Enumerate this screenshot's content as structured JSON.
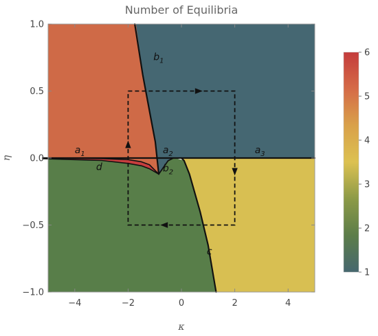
{
  "chart_data": {
    "type": "heatmap",
    "title": "Number of Equilibria",
    "xlabel": "κ",
    "ylabel": "η",
    "xlim": [
      -5,
      5
    ],
    "ylim": [
      -1,
      1
    ],
    "x_ticks": [
      -4,
      -2,
      0,
      2,
      4
    ],
    "x_tick_labels": [
      "−4",
      "−2",
      "0",
      "2",
      "4"
    ],
    "y_ticks": [
      1.0,
      0.5,
      0.0,
      -0.5,
      -1.0
    ],
    "y_tick_labels": [
      "1.0",
      "0.5",
      "0.0",
      "−0.5",
      "−1.0"
    ],
    "colorbar": {
      "min": 1,
      "max": 6,
      "ticks": [
        1,
        2,
        3,
        4,
        5,
        6
      ],
      "tick_labels": [
        "1",
        "2",
        "3",
        "4",
        "5",
        "6"
      ],
      "stops": [
        "#46676f",
        "#5c7d49",
        "#8c9a47",
        "#dcc151",
        "#d9a14a",
        "#d56b47",
        "#c43c3c"
      ]
    },
    "regions": [
      {
        "id": "top-left",
        "value": 5,
        "color": "#cf6a47"
      },
      {
        "id": "top-right",
        "value": 1,
        "color": "#456772"
      },
      {
        "id": "bottom-left",
        "value": 2,
        "color": "#587e49"
      },
      {
        "id": "bottom-right",
        "value": 4,
        "color": "#d8bf52"
      },
      {
        "id": "lens",
        "value": 6,
        "color": "#c73e3e"
      }
    ],
    "curves": {
      "b1": [
        [
          -1.75,
          1.0
        ],
        [
          -1.45,
          0.62
        ],
        [
          -1.15,
          0.3
        ],
        [
          -0.98,
          0.12
        ],
        [
          -0.85,
          -0.12
        ]
      ],
      "c": [
        [
          0.0,
          0.0
        ],
        [
          0.1,
          -0.02
        ],
        [
          0.3,
          -0.12
        ],
        [
          0.7,
          -0.4
        ],
        [
          1.0,
          -0.65
        ],
        [
          1.3,
          -1.0
        ]
      ],
      "d_upper": [
        [
          -5.2,
          0.0
        ],
        [
          -3.0,
          -0.004
        ],
        [
          -2.0,
          -0.012
        ],
        [
          -1.5,
          -0.028
        ],
        [
          -1.2,
          -0.05
        ],
        [
          -0.85,
          -0.12
        ]
      ],
      "d_lower": [
        [
          -5.2,
          -0.005
        ],
        [
          -3.0,
          -0.018
        ],
        [
          -2.0,
          -0.04
        ],
        [
          -1.5,
          -0.058
        ],
        [
          -1.2,
          -0.08
        ],
        [
          -0.85,
          -0.12
        ]
      ],
      "cusp_arc": [
        [
          -0.85,
          -0.12
        ],
        [
          -0.5,
          -0.02
        ],
        [
          -0.3,
          0.0
        ]
      ],
      "axis_line": [
        [
          -5.2,
          0.0
        ],
        [
          5.0,
          0.0
        ]
      ]
    },
    "path": [
      [
        -2,
        0.5
      ],
      [
        2,
        0.5
      ],
      [
        2,
        -0.5
      ],
      [
        -2,
        -0.5
      ],
      [
        -2,
        0.5
      ]
    ],
    "annotations": [
      {
        "main": "a",
        "sub": "1",
        "x": -4.0,
        "y": 0.035
      },
      {
        "main": "a",
        "sub": "2",
        "x": -0.7,
        "y": 0.035
      },
      {
        "main": "a",
        "sub": "3",
        "x": 2.75,
        "y": 0.035
      },
      {
        "main": "b",
        "sub": "1",
        "x": -1.05,
        "y": 0.73
      },
      {
        "main": "b",
        "sub": "2",
        "x": -0.7,
        "y": -0.1
      },
      {
        "main": "d",
        "sub": "",
        "x": -3.2,
        "y": -0.09
      },
      {
        "main": "c",
        "sub": "",
        "x": 0.95,
        "y": -0.72
      }
    ],
    "grid": false,
    "legend": "colorbar-right"
  }
}
